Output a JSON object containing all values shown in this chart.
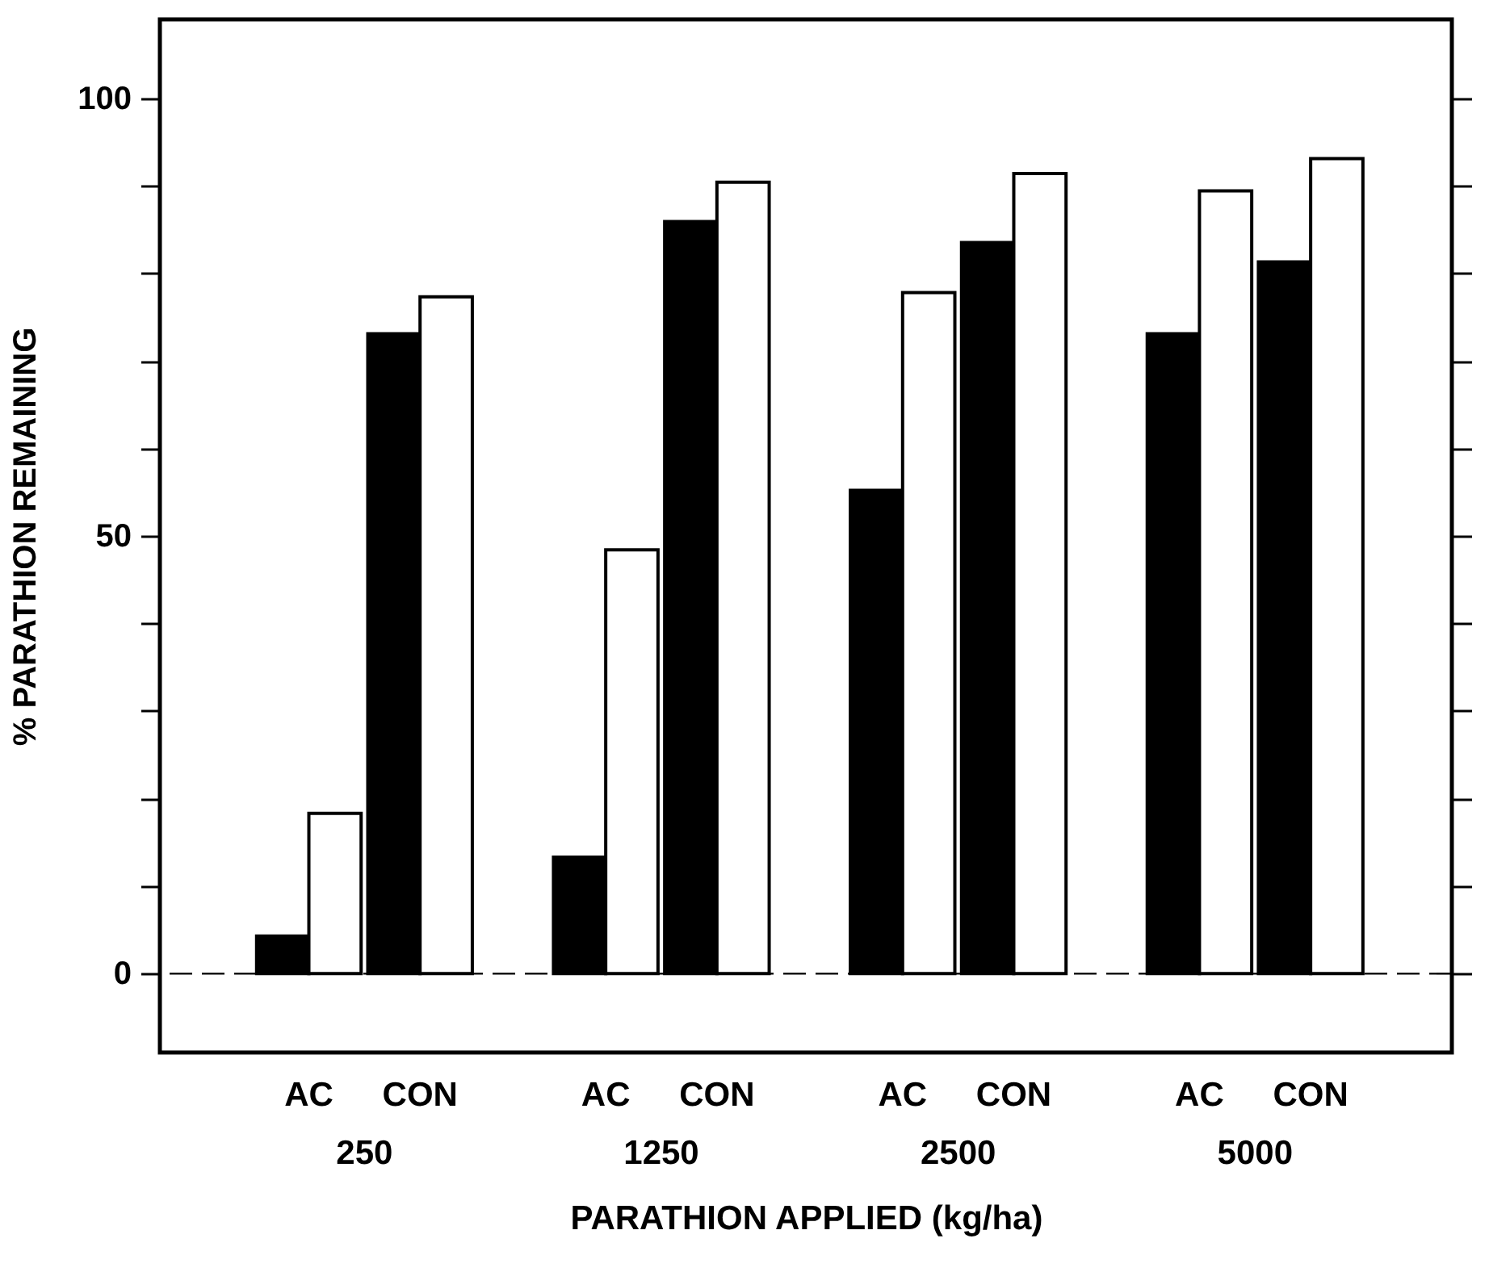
{
  "chart_data": {
    "type": "bar",
    "xlabel": "PARATHION APPLIED (kg/ha)",
    "ylabel": "% PARATHION REMAINING",
    "categories": [
      "AC",
      "CON",
      "AC",
      "CON",
      "AC",
      "CON",
      "AC",
      "CON"
    ],
    "series": [
      {
        "color": "#000000",
        "values": [
          4.3,
          73.1,
          13.3,
          85.9,
          55.2,
          83.5,
          73.1,
          81.3
        ]
      },
      {
        "color": "#ffffff",
        "values": [
          18.3,
          77.3,
          48.4,
          90.4,
          77.8,
          91.4,
          89.4,
          93.1
        ]
      }
    ],
    "annotations": [
      "250",
      "1250",
      "2500",
      "5000"
    ],
    "ylim": [
      -9,
      109
    ],
    "yticks": [
      0,
      {
        "value": 10,
        "label": null
      },
      {
        "value": 20,
        "label": null
      },
      {
        "value": 30,
        "label": null
      },
      {
        "value": 40,
        "label": null
      },
      50,
      {
        "value": 60,
        "label": null
      },
      {
        "value": 70,
        "label": null
      },
      {
        "value": 80,
        "label": null
      },
      {
        "value": 90,
        "label": null
      },
      100
    ],
    "ref_lines": [
      {
        "axis": "y",
        "value": 0,
        "color": "#000000",
        "line_style": "dashed"
      }
    ],
    "grid": false
  }
}
